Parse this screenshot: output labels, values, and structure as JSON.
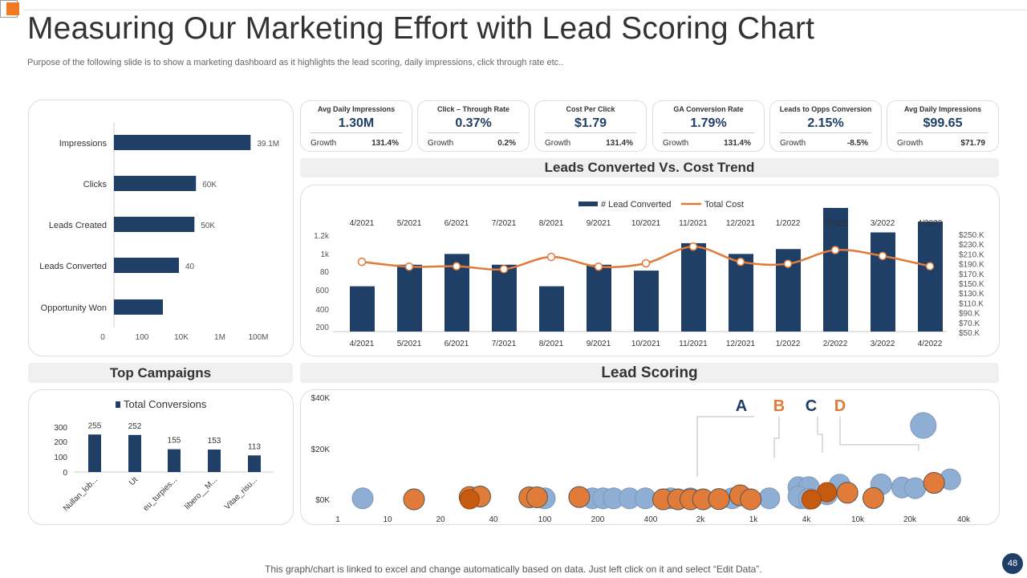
{
  "page": {
    "title": "Measuring Our Marketing Effort with Lead Scoring Chart",
    "subtitle": "Purpose of the following slide is to show a marketing dashboard as it highlights the lead scoring, daily impressions, click through rate etc..",
    "footer": "This graph/chart is linked to excel and change automatically based on data. Just left click on it and select “Edit Data”.",
    "page_number": "48"
  },
  "kpis": [
    {
      "title": "Avg  Daily Impressions",
      "value": "1.30M",
      "growth_label": "Growth",
      "growth_value": "131.4%"
    },
    {
      "title": "Click – Through Rate",
      "value": "0.37%",
      "growth_label": "Growth",
      "growth_value": "0.2%"
    },
    {
      "title": "Cost Per Click",
      "value": "$1.79",
      "growth_label": "Growth",
      "growth_value": "131.4%"
    },
    {
      "title": "GA  Conversion Rate",
      "value": "1.79%",
      "growth_label": "Growth",
      "growth_value": "131.4%"
    },
    {
      "title": "Leads to Opps Conversion",
      "value": "2.15%",
      "growth_label": "Growth",
      "growth_value": "-8.5%"
    },
    {
      "title": "Avg  Daily Impressions",
      "value": "$99.65",
      "growth_label": "Growth",
      "growth_value": "$71.79"
    }
  ],
  "headers": {
    "trend": "Leads Converted Vs. Cost Trend",
    "campaigns": "Top Campaigns",
    "scoring": "Lead Scoring"
  },
  "colors": {
    "navy": "#1f3f67",
    "orange": "#e07b39",
    "dark_orange": "#c55a11",
    "light_blue": "#8faed4"
  },
  "chart_data": [
    {
      "type": "bar",
      "orientation": "horizontal",
      "categories": [
        "Impressions",
        "Clicks",
        "Leads Created",
        "Leads Converted",
        "Opportunity Won"
      ],
      "data_labels": [
        "39.1M",
        "60K",
        "50K",
        "40",
        ""
      ],
      "values": [
        39100000,
        60000,
        50000,
        40,
        30
      ],
      "x_ticks": [
        "0",
        "100",
        "10K",
        "1M",
        "100M"
      ],
      "xscale": "log"
    },
    {
      "type": "bar",
      "series_types": [
        "bar",
        "line"
      ],
      "categories": [
        "4/2021",
        "5/2021",
        "6/2021",
        "7/2021",
        "8/2021",
        "9/2021",
        "10/2021",
        "11/2021",
        "12/2021",
        "1/2022",
        "2/2022",
        "3/2022",
        "4/2022"
      ],
      "series": [
        {
          "name": "# Lead Converted",
          "axis": "left",
          "values": [
            400,
            620,
            730,
            620,
            400,
            620,
            560,
            840,
            730,
            780,
            1200,
            950,
            1060
          ]
        },
        {
          "name": "Total Cost",
          "axis": "right",
          "values": [
            194,
            184,
            185,
            179,
            204,
            184,
            191,
            225,
            194,
            190,
            218,
            206,
            185
          ]
        }
      ],
      "y_ticks_left": [
        "200",
        "400",
        "600",
        "80",
        "1k",
        "1.2k"
      ],
      "y_ticks_right": [
        "$50.K",
        "$70.K",
        "$90.K",
        "$110.K",
        "$130.K",
        "$150.K",
        "$170.K",
        "$190.K",
        "$210.K",
        "$230.K",
        "$250.K"
      ],
      "ylim_left": [
        200,
        1200
      ],
      "ylim_right": [
        50,
        250
      ]
    },
    {
      "type": "bar",
      "categories": [
        "Nullan_lob...",
        "Ut",
        "eu_turpies...",
        "libero__M...",
        "Vitae_risu..."
      ],
      "series": [
        {
          "name": "Total Conversions",
          "values": [
            255,
            252,
            155,
            153,
            113
          ]
        }
      ],
      "y_ticks": [
        "0",
        "100",
        "200",
        "300"
      ],
      "ylim": [
        0,
        300
      ]
    },
    {
      "type": "scatter",
      "x_ticks": [
        "1",
        "10",
        "20",
        "40",
        "100",
        "200",
        "400",
        "2k",
        "1k",
        "4k",
        "10k",
        "20k",
        "40k"
      ],
      "y_ticks": [
        "$0K",
        "$20K",
        "$40K"
      ],
      "ylim": [
        0,
        40
      ],
      "annotations": [
        "A",
        "B",
        "C",
        "D"
      ],
      "series": [
        {
          "name": "blue",
          "points": [
            [
              0.5,
              0.4
            ],
            [
              4,
              0.4
            ],
            [
              4.9,
              0.4
            ],
            [
              5.1,
              0.4
            ],
            [
              5.3,
              0.4
            ],
            [
              5.6,
              0.4
            ],
            [
              5.9,
              0.4
            ],
            [
              6.4,
              0.4
            ],
            [
              6.8,
              0.4
            ],
            [
              7.6,
              0.4
            ],
            [
              8.3,
              0.4
            ],
            [
              8.9,
              0.4
            ],
            [
              9.1,
              0.4
            ],
            [
              8.85,
              4.8
            ],
            [
              9.05,
              4.8
            ],
            [
              8.85,
              1.1
            ],
            [
              9.05,
              0.2
            ],
            [
              9.4,
              2.0
            ],
            [
              9.65,
              5.8
            ],
            [
              10.45,
              5.9
            ],
            [
              10.85,
              4.7
            ],
            [
              11.1,
              4.4
            ],
            [
              11.25,
              29.2
            ],
            [
              11.75,
              7.9
            ]
          ]
        },
        {
          "name": "orange",
          "points": [
            [
              1.5,
              0
            ],
            [
              2.55,
              0.9
            ],
            [
              2.75,
              1.1
            ],
            [
              3.7,
              0.8
            ],
            [
              3.85,
              0.8
            ],
            [
              4.65,
              0.9
            ],
            [
              6.25,
              0
            ],
            [
              6.55,
              0
            ],
            [
              6.8,
              0
            ],
            [
              7.05,
              0
            ],
            [
              7.35,
              0.1
            ],
            [
              7.75,
              1.6
            ],
            [
              7.95,
              0
            ],
            [
              9.8,
              2.6
            ],
            [
              10.3,
              0.5
            ],
            [
              11.45,
              6.5
            ]
          ]
        },
        {
          "name": "dark",
          "points": [
            [
              2.55,
              0
            ],
            [
              9.4,
              2.8
            ],
            [
              9.1,
              0
            ]
          ]
        }
      ]
    }
  ]
}
